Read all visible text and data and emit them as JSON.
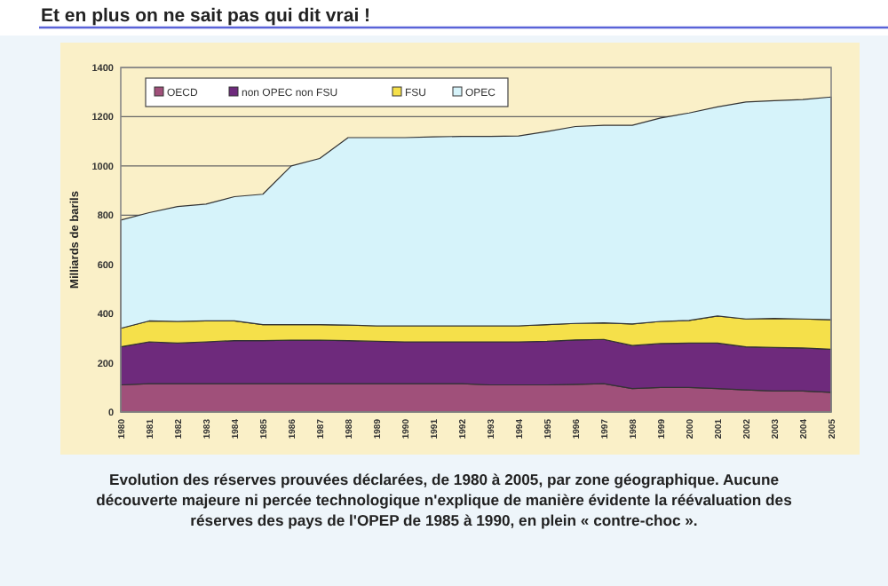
{
  "chart_data": {
    "type": "area",
    "stacked": true,
    "title": "Et en plus on ne sait pas qui dit vrai !",
    "ylabel": "Milliards de barils",
    "categories": [
      "1980",
      "1981",
      "1982",
      "1983",
      "1984",
      "1985",
      "1986",
      "1987",
      "1988",
      "1989",
      "1990",
      "1991",
      "1992",
      "1993",
      "1994",
      "1995",
      "1996",
      "1997",
      "1998",
      "1999",
      "2000",
      "2001",
      "2002",
      "2003",
      "2004",
      "2005"
    ],
    "series": [
      {
        "name": "OECD",
        "color": "#a0507a",
        "values": [
          110,
          115,
          115,
          115,
          115,
          115,
          115,
          115,
          115,
          115,
          115,
          115,
          115,
          110,
          110,
          110,
          112,
          115,
          95,
          100,
          100,
          95,
          90,
          85,
          85,
          80
        ]
      },
      {
        "name": "non OPEC non FSU",
        "color": "#6e2a7c",
        "values": [
          155,
          170,
          165,
          170,
          175,
          175,
          177,
          177,
          175,
          172,
          170,
          170,
          170,
          175,
          175,
          177,
          181,
          180,
          175,
          178,
          180,
          185,
          175,
          177,
          175,
          175
        ]
      },
      {
        "name": "FSU",
        "color": "#f5e04a",
        "values": [
          75,
          85,
          88,
          85,
          80,
          65,
          63,
          63,
          63,
          63,
          65,
          65,
          65,
          65,
          65,
          68,
          67,
          67,
          88,
          90,
          92,
          110,
          113,
          118,
          118,
          120
        ]
      },
      {
        "name": "OPEC",
        "color": "#d6f3fa",
        "values": [
          440,
          440,
          467,
          475,
          505,
          530,
          645,
          675,
          762,
          765,
          765,
          768,
          770,
          770,
          772,
          785,
          800,
          803,
          807,
          827,
          843,
          850,
          882,
          885,
          892,
          905
        ]
      }
    ],
    "ylim": [
      0,
      1400
    ],
    "yticks": [
      0,
      200,
      400,
      600,
      800,
      1000,
      1200,
      1400
    ],
    "grid": "y",
    "legend": "top left",
    "annotations": [
      "Evolution des réserves prouvées déclarées, de 1980 à 2005, par zone géographique. Aucune découverte majeure ni percée technologique n'explique de manière évidente la réévaluation des réserves des pays de l'OPEP de 1985 à 1990, en plein « contre-choc »."
    ]
  }
}
